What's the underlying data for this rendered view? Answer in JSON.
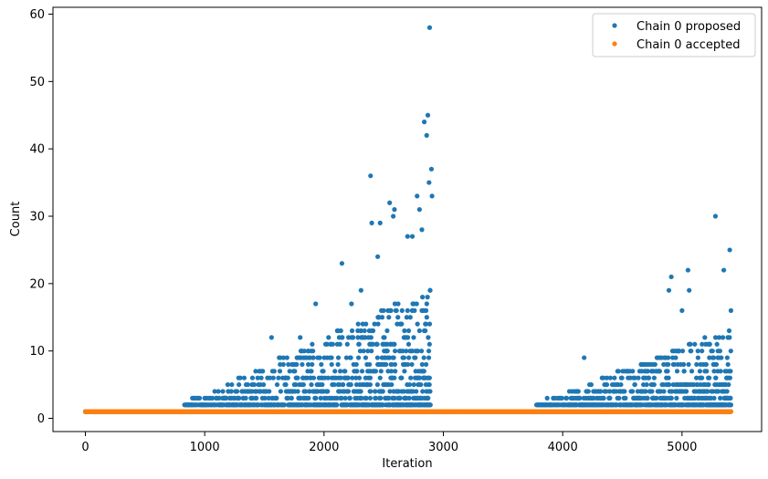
{
  "chart_data": {
    "type": "scatter",
    "title": "",
    "xlabel": "Iteration",
    "ylabel": "Count",
    "xlim": [
      -400,
      5800
    ],
    "ylim": [
      -2,
      61
    ],
    "xticks": [
      0,
      1000,
      2000,
      3000,
      4000,
      5000
    ],
    "xtick_labels": [
      "0",
      "1000",
      "2000",
      "3000",
      "4000",
      "5000"
    ],
    "yticks": [
      0,
      10,
      20,
      30,
      40,
      50,
      60
    ],
    "ytick_labels": [
      "0",
      "10",
      "20",
      "30",
      "40",
      "50",
      "60"
    ],
    "grid": false,
    "legend_position": "top-right",
    "series": [
      {
        "name": "Chain 0 proposed",
        "color": "#1f77b4",
        "description_of_distribution": "x from 0 to 5410; value 1 everywhere; scattered counts 2-17 between x=830-2890 and x=3780-5410 with outliers",
        "points": [
          [
            0,
            1
          ],
          [
            900,
            2
          ],
          [
            1000,
            3
          ],
          [
            1200,
            4
          ],
          [
            1400,
            6
          ],
          [
            1560,
            12
          ],
          [
            1800,
            12
          ],
          [
            1930,
            17
          ],
          [
            2150,
            23
          ],
          [
            2230,
            17
          ],
          [
            2310,
            19
          ],
          [
            2390,
            36
          ],
          [
            2400,
            29
          ],
          [
            2450,
            24
          ],
          [
            2470,
            29
          ],
          [
            2550,
            32
          ],
          [
            2580,
            30
          ],
          [
            2590,
            31
          ],
          [
            2700,
            27
          ],
          [
            2740,
            27
          ],
          [
            2780,
            33
          ],
          [
            2800,
            31
          ],
          [
            2820,
            28
          ],
          [
            2840,
            44
          ],
          [
            2860,
            42
          ],
          [
            2870,
            45
          ],
          [
            2880,
            35
          ],
          [
            2885,
            58
          ],
          [
            2900,
            37
          ],
          [
            2905,
            33
          ],
          [
            4180,
            9
          ],
          [
            4890,
            19
          ],
          [
            4910,
            21
          ],
          [
            5000,
            16
          ],
          [
            5050,
            22
          ],
          [
            5060,
            19
          ],
          [
            5280,
            30
          ],
          [
            5350,
            22
          ],
          [
            5400,
            25
          ],
          [
            5410,
            16
          ]
        ]
      },
      {
        "name": "Chain 0 accepted",
        "color": "#ff7f0e",
        "description_of_distribution": "value 1 at every iteration from 0 to 5410",
        "points": [
          [
            0,
            1
          ],
          [
            5410,
            1
          ]
        ]
      }
    ]
  }
}
